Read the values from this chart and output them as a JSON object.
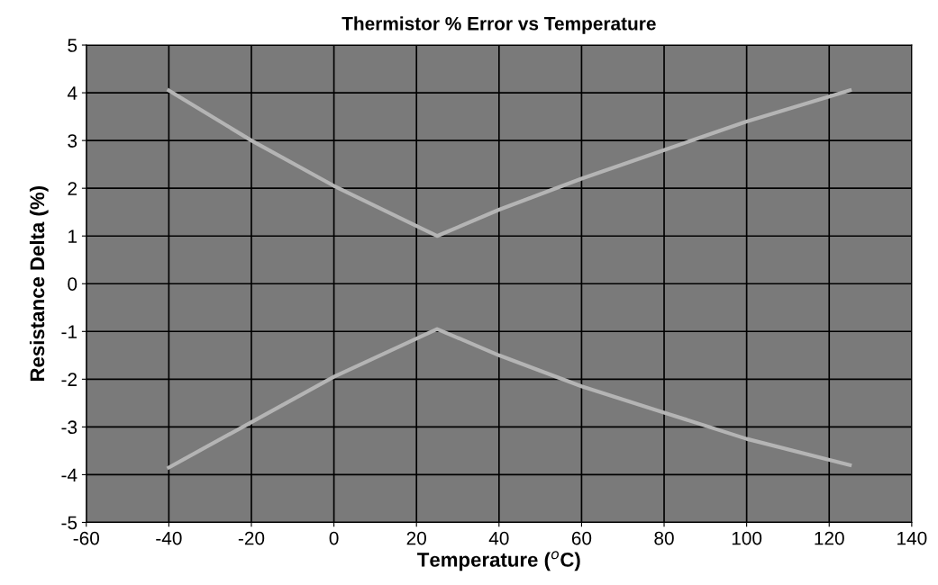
{
  "chart_data": {
    "type": "line",
    "title": "Thermistor % Error vs Temperature",
    "xlabel": "Temperature ($^{o}$C)",
    "ylabel": "Resistance Delta (%)",
    "series": [
      {
        "color": "#b4b4b4",
        "x": [
          -40,
          -20,
          0,
          25,
          40,
          60,
          80,
          100,
          125
        ],
        "values": [
          4.05,
          3.0,
          2.05,
          1.0,
          1.55,
          2.2,
          2.8,
          3.4,
          4.05
        ]
      },
      {
        "color": "#b4b4b4",
        "x": [
          -40,
          -20,
          0,
          25,
          40,
          60,
          80,
          100,
          125
        ],
        "values": [
          -3.85,
          -2.9,
          -1.95,
          -0.95,
          -1.5,
          -2.15,
          -2.7,
          -3.25,
          -3.8
        ]
      }
    ],
    "xlim": [
      -60,
      140
    ],
    "xticks": [
      -60,
      -40,
      -20,
      0,
      20,
      40,
      60,
      80,
      100,
      120,
      140
    ],
    "ylim": [
      -5,
      5
    ],
    "yticks": [
      -5,
      -4,
      -3,
      -2,
      -1,
      0,
      1,
      2,
      3,
      4,
      5
    ],
    "grid": true,
    "legend": false,
    "marker": "none",
    "line_style": "solid"
  }
}
